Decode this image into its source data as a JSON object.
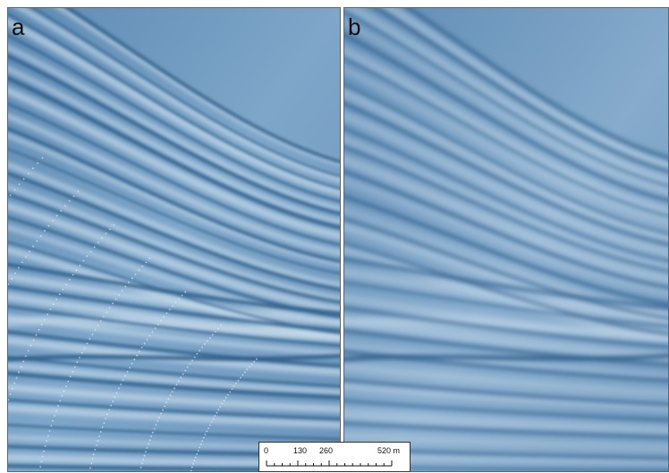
{
  "panels": [
    {
      "label": "a",
      "style": "shaded relief with survey artifacts"
    },
    {
      "label": "b",
      "style": "smoothed shaded relief"
    }
  ],
  "scale_bar": {
    "ticks": [
      "0",
      "130",
      "260",
      "520 m"
    ]
  },
  "colors": {
    "base": "#6f98be",
    "ridge": "#d9e8f4",
    "channel": "#2a5a86",
    "border": "#5a6670"
  }
}
